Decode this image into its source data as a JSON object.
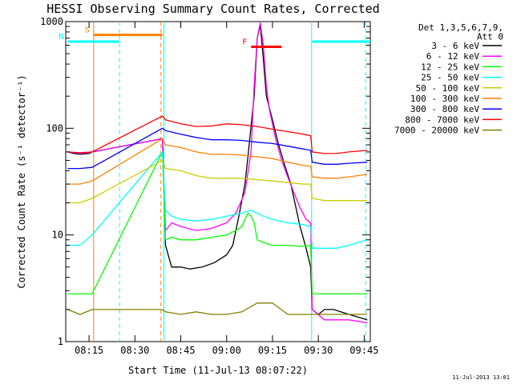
{
  "chart_data": {
    "type": "line",
    "title": "HESSI Observing Summary Count Rates, Corrected",
    "xlabel": "Start Time (11-Jul-13 08:07:22)",
    "ylabel": "Corrected Count Rate (s⁻¹ detector⁻¹)",
    "y_scale": "log",
    "ylim": [
      1,
      1000
    ],
    "xlim_minutes_after_0800": [
      7.37,
      107.0
    ],
    "x_ticks": [
      {
        "label": "08:15",
        "value": 15
      },
      {
        "label": "08:30",
        "value": 30
      },
      {
        "label": "08:45",
        "value": 45
      },
      {
        "label": "09:00",
        "value": 60
      },
      {
        "label": "09:15",
        "value": 75
      },
      {
        "label": "09:30",
        "value": 90
      },
      {
        "label": "09:45",
        "value": 105
      }
    ],
    "y_ticks": [
      {
        "label": "1",
        "value": 1
      },
      {
        "label": "10",
        "value": 10
      },
      {
        "label": "100",
        "value": 100
      },
      {
        "label": "1000",
        "value": 1000
      }
    ],
    "legend_header": [
      "Det 1,3,5,6,7,9,",
      "Att 0"
    ],
    "legend_position": "right",
    "series": [
      {
        "name": "3 - 6 keV",
        "color": "#000000",
        "x": [
          8,
          10,
          12,
          15,
          16,
          39,
          40,
          42,
          45,
          48,
          52,
          56,
          60,
          62,
          64,
          66,
          67,
          69,
          70,
          71,
          72,
          73,
          75,
          77,
          79,
          81,
          84,
          86,
          87.5,
          88,
          90,
          92,
          95,
          100,
          106
        ],
        "y": [
          60,
          58,
          57,
          58,
          60,
          80,
          8,
          5,
          5,
          4.8,
          5,
          5.5,
          6.5,
          8,
          15,
          30,
          55,
          200,
          700,
          930,
          450,
          200,
          120,
          70,
          45,
          30,
          12,
          7.5,
          5,
          2,
          1.8,
          2,
          2,
          1.8,
          1.6
        ]
      },
      {
        "name": "6 - 12 keV",
        "color": "#ff00ff",
        "x": [
          8,
          12,
          16,
          39,
          40,
          42,
          45,
          50,
          55,
          60,
          63,
          66,
          68,
          69,
          70,
          71,
          72,
          73,
          74,
          76,
          78,
          80,
          82,
          84,
          86,
          87.5,
          88,
          92,
          96,
          100,
          106
        ],
        "y": [
          60,
          58,
          60,
          80,
          11,
          13,
          12,
          11,
          11.5,
          13,
          16,
          25,
          60,
          250,
          700,
          980,
          600,
          250,
          150,
          80,
          50,
          35,
          25,
          18,
          14,
          13,
          2,
          1.6,
          1.6,
          1.6,
          1.5
        ]
      },
      {
        "name": "12 - 25 keV",
        "color": "#00ff00",
        "x": [
          8,
          12,
          16,
          39,
          40,
          42,
          45,
          50,
          55,
          60,
          63,
          65,
          66,
          67,
          68,
          69,
          70,
          72,
          75,
          80,
          85,
          87.5,
          88,
          92,
          96,
          100,
          106
        ],
        "y": [
          2.8,
          2.8,
          2.8,
          60,
          9,
          9.5,
          9,
          9,
          9.5,
          10,
          11,
          12,
          14,
          16,
          15,
          13,
          9,
          8.5,
          8,
          8,
          7.8,
          8,
          2.8,
          2.8,
          2.8,
          2.8,
          2.8
        ]
      },
      {
        "name": "25 - 50 keV",
        "color": "#00ffff",
        "x": [
          8,
          12,
          16,
          39,
          40,
          42,
          45,
          50,
          55,
          60,
          65,
          68,
          70,
          72,
          75,
          80,
          85,
          87.5,
          88,
          92,
          96,
          100,
          106
        ],
        "y": [
          8,
          8,
          10,
          60,
          17,
          15,
          14,
          13.5,
          14,
          15,
          16,
          17,
          16,
          15,
          14,
          13,
          12.5,
          12,
          7.5,
          7.5,
          7.5,
          8,
          9
        ]
      },
      {
        "name": "50 - 100 keV",
        "color": "#cccc00",
        "x": [
          8,
          12,
          16,
          39,
          40,
          45,
          50,
          55,
          60,
          65,
          70,
          75,
          80,
          85,
          87.5,
          88,
          92,
          96,
          100,
          106
        ],
        "y": [
          20,
          20,
          22,
          50,
          42,
          40,
          36,
          34,
          34,
          34,
          33,
          32,
          31,
          30,
          30,
          22,
          21,
          21,
          21,
          21
        ]
      },
      {
        "name": "100 - 300 keV",
        "color": "#ff8000",
        "x": [
          8,
          12,
          16,
          39,
          40,
          45,
          50,
          55,
          60,
          65,
          70,
          75,
          80,
          85,
          87.5,
          88,
          92,
          96,
          100,
          106
        ],
        "y": [
          30,
          30,
          32,
          80,
          70,
          66,
          60,
          57,
          57,
          56,
          54,
          52,
          48,
          45,
          44,
          35,
          34,
          34,
          35,
          37
        ]
      },
      {
        "name": "300 - 800 keV",
        "color": "#0000ff",
        "x": [
          8,
          12,
          16,
          39,
          40,
          45,
          50,
          55,
          60,
          65,
          70,
          75,
          80,
          85,
          87.5,
          88,
          92,
          96,
          100,
          106
        ],
        "y": [
          42,
          42,
          43,
          100,
          95,
          88,
          82,
          78,
          78,
          77,
          74,
          72,
          68,
          64,
          62,
          48,
          46,
          46,
          47,
          48
        ]
      },
      {
        "name": "800 - 7000 keV",
        "color": "#ff0000",
        "x": [
          8,
          12,
          16,
          39,
          40,
          45,
          50,
          55,
          60,
          65,
          70,
          75,
          80,
          85,
          87.5,
          88,
          92,
          96,
          100,
          106
        ],
        "y": [
          60,
          59,
          60,
          130,
          120,
          110,
          104,
          105,
          110,
          108,
          104,
          98,
          93,
          88,
          85,
          60,
          58,
          58,
          60,
          62
        ]
      },
      {
        "name": "7000 - 20000 keV",
        "color": "#808000",
        "x": [
          8,
          12,
          16,
          39,
          40,
          45,
          50,
          55,
          60,
          65,
          70,
          75,
          80,
          85,
          87.5,
          88,
          92,
          96,
          100,
          106
        ],
        "y": [
          2,
          1.8,
          2,
          2,
          1.9,
          1.8,
          1.9,
          1.8,
          1.8,
          1.9,
          2.3,
          2.3,
          1.8,
          1.8,
          1.8,
          1.8,
          1.8,
          1.8,
          1.8,
          1.8
        ]
      }
    ],
    "flag_bars": [
      {
        "label": "S",
        "color": "#ff8000",
        "x_start": 16.5,
        "x_end": 39,
        "y": 750
      },
      {
        "label": "N",
        "color": "#00ffff",
        "x_start": 8,
        "x_end": 25,
        "y": 650
      },
      {
        "label": "",
        "color": "#00ffff",
        "x_start": 88,
        "x_end": 107,
        "y": 650
      },
      {
        "label": "F",
        "color": "#ff0000",
        "x_start": 68,
        "x_end": 78,
        "y": 580
      }
    ],
    "vertical_markers": [
      {
        "x": 16.5,
        "color": "#ff8000",
        "style": "solid"
      },
      {
        "x": 25,
        "color": "#00ffff",
        "style": "dashed"
      },
      {
        "x": 38.5,
        "color": "#ff8000",
        "style": "dashed"
      },
      {
        "x": 39.5,
        "color": "#00ffff",
        "style": "solid"
      },
      {
        "x": 87.8,
        "color": "#00ffff",
        "style": "solid"
      },
      {
        "x": 105.5,
        "color": "#00ffff",
        "style": "dashed"
      }
    ],
    "gaps": [
      [
        16.5,
        39.5
      ]
    ]
  },
  "footer_timestamp": "11-Jul-2013 13:01"
}
